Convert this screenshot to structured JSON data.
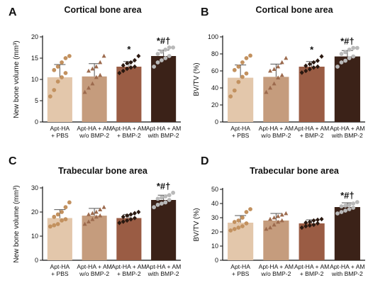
{
  "colors": {
    "bars": [
      "#e3c7ab",
      "#c59c7d",
      "#9a5c44",
      "#3b2218"
    ],
    "points": [
      "#c2915f",
      "#9c6a4d",
      "#2a1810",
      "#b9b9b9"
    ],
    "points_shape": [
      "circle",
      "triangle",
      "diamond",
      "circle"
    ]
  },
  "chart_data": [
    {
      "type": "bar",
      "panel": "A",
      "title": "Cortical bone area",
      "ylabel": "New bone volume (mm³)",
      "ylim": [
        0,
        20
      ],
      "yticks": [
        0,
        5,
        10,
        15,
        20
      ],
      "categories": [
        [
          "Apt-HA",
          "+ PBS"
        ],
        [
          "Apt-HA + AM",
          "w/o BMP-2"
        ],
        [
          "Apt-HA + AM",
          "+ BMP-2"
        ],
        [
          "Apt-HA + AM",
          "with BMP-2"
        ]
      ],
      "values": [
        10.5,
        10.7,
        13.0,
        15.5
      ],
      "errors": [
        3.0,
        3.0,
        1.2,
        1.4
      ],
      "points": [
        [
          6.0,
          7.5,
          9.5,
          10.5,
          11.5,
          12.2,
          13.0,
          14.0,
          15.0,
          15.5
        ],
        [
          7.0,
          8.0,
          9.0,
          10.5,
          11.0,
          12.0,
          12.5,
          13.0,
          14.0,
          15.5
        ],
        [
          11.5,
          12.0,
          12.5,
          12.8,
          13.0,
          13.3,
          13.8,
          14.0,
          14.5,
          15.5
        ],
        [
          13.0,
          14.0,
          14.5,
          15.0,
          15.5,
          16.0,
          16.5,
          17.0,
          17.5,
          17.5
        ]
      ],
      "significance": [
        "",
        "",
        "*",
        "*#†"
      ]
    },
    {
      "type": "bar",
      "panel": "B",
      "title": "Cortical bone area",
      "ylabel": "BV/TV (%)",
      "ylim": [
        0,
        100
      ],
      "yticks": [
        0,
        20,
        40,
        60,
        80,
        100
      ],
      "categories": [
        [
          "Apt-HA",
          "+ PBS"
        ],
        [
          "Apt-HA + AM",
          "w/o BMP-2"
        ],
        [
          "Apt-HA + AM",
          "+ BMP-2"
        ],
        [
          "Apt-HA + AM",
          "with BMP-2"
        ]
      ],
      "values": [
        52,
        53,
        65,
        77
      ],
      "errors": [
        15,
        15,
        6,
        7
      ],
      "points": [
        [
          30,
          37,
          47,
          53,
          57,
          61,
          65,
          70,
          75,
          78
        ],
        [
          35,
          40,
          45,
          52,
          55,
          60,
          62,
          65,
          70,
          75
        ],
        [
          58,
          60,
          62,
          64,
          65,
          66,
          68,
          70,
          72,
          77
        ],
        [
          65,
          70,
          72,
          75,
          77,
          80,
          82,
          85,
          87,
          87
        ]
      ],
      "significance": [
        "",
        "",
        "*",
        "*#†"
      ]
    },
    {
      "type": "bar",
      "panel": "C",
      "title": "Trabecular bone area",
      "ylabel": "New bone volume (mm³)",
      "ylim": [
        0,
        30
      ],
      "yticks": [
        0,
        10,
        20,
        30
      ],
      "categories": [
        [
          "Apt-HA",
          "+ PBS"
        ],
        [
          "Apt-HA + AM",
          "w/o BMP-2"
        ],
        [
          "Apt-HA + AM",
          "+ BMP-2"
        ],
        [
          "Apt-HA + AM",
          "with BMP-2"
        ]
      ],
      "values": [
        17.5,
        18.5,
        17.5,
        25.0
      ],
      "errors": [
        3.5,
        3.0,
        1.5,
        2.0
      ],
      "points": [
        [
          14.0,
          14.5,
          15.0,
          16.5,
          17.0,
          18.0,
          19.0,
          20.0,
          22.0,
          24.0
        ],
        [
          15.0,
          16.0,
          17.0,
          18.0,
          18.5,
          19.0,
          19.5,
          20.0,
          21.0,
          22.0
        ],
        [
          15.5,
          16.0,
          16.5,
          17.0,
          17.5,
          18.0,
          18.5,
          19.0,
          19.5,
          20.0
        ],
        [
          22.0,
          23.0,
          23.5,
          24.0,
          25.0,
          25.5,
          26.0,
          26.5,
          27.0,
          28.0
        ]
      ],
      "significance": [
        "",
        "",
        "",
        "*#†"
      ]
    },
    {
      "type": "bar",
      "panel": "D",
      "title": "Trabecular bone area",
      "ylabel": "BV/TV (%)",
      "ylim": [
        0,
        50
      ],
      "yticks": [
        0,
        10,
        20,
        30,
        40,
        50
      ],
      "categories": [
        [
          "Apt-HA",
          "+ PBS"
        ],
        [
          "Apt-HA + AM",
          "w/o BMP-2"
        ],
        [
          "Apt-HA + AM",
          "+ BMP-2"
        ],
        [
          "Apt-HA + AM",
          "with BMP-2"
        ]
      ],
      "values": [
        26.5,
        28.0,
        26.0,
        37.5
      ],
      "errors": [
        5.0,
        5.0,
        2.5,
        3.0
      ],
      "points": [
        [
          21.0,
          22.0,
          23.0,
          24.0,
          26.0,
          27.0,
          28.0,
          30.0,
          34.0,
          36.0
        ],
        [
          22.0,
          23.0,
          25.0,
          27.0,
          28.0,
          29.0,
          30.0,
          31.0,
          32.0,
          33.0
        ],
        [
          23.0,
          24.0,
          24.5,
          25.0,
          26.0,
          26.5,
          27.0,
          28.0,
          28.5,
          29.0
        ],
        [
          33.0,
          34.0,
          35.0,
          36.0,
          37.0,
          38.0,
          38.5,
          39.0,
          40.0,
          41.0
        ]
      ],
      "significance": [
        "",
        "",
        "",
        "*#†"
      ]
    }
  ]
}
